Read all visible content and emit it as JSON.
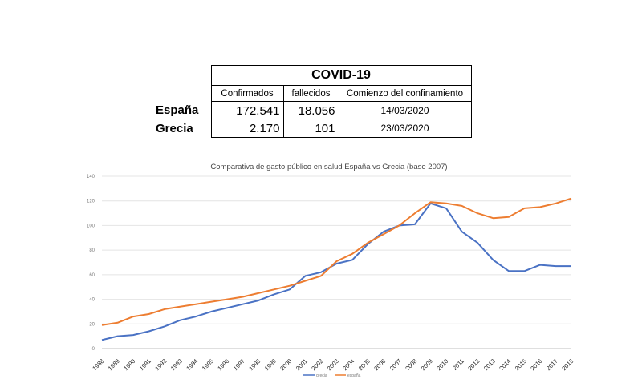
{
  "covid_table": {
    "title": "COVID-19",
    "headers": [
      "Confirmados",
      "fallecidos",
      "Comienzo del confinamiento"
    ],
    "rows": [
      {
        "country": "España",
        "confirmados": "172.541",
        "fallecidos": "18.056",
        "confinamiento": "14/03/2020"
      },
      {
        "country": "Grecia",
        "confirmados": "2.170",
        "fallecidos": "101",
        "confinamiento": "23/03/2020"
      }
    ]
  },
  "chart_data": {
    "type": "line",
    "title": "Comparativa de gasto público en salud España vs Grecia (base 2007)",
    "xlabel": "",
    "ylabel": "",
    "ylim": [
      0,
      140
    ],
    "yticks": [
      "0",
      "20",
      "40",
      "60",
      "80",
      "100",
      "120",
      "140"
    ],
    "grid": true,
    "legend_position": "bottom",
    "x": [
      "1988",
      "1989",
      "1990",
      "1991",
      "1992",
      "1993",
      "1994",
      "1995",
      "1996",
      "1997",
      "1998",
      "1999",
      "2000",
      "2001",
      "2002",
      "2003",
      "2004",
      "2005",
      "2006",
      "2007",
      "2008",
      "2009",
      "2010",
      "2011",
      "2012",
      "2013",
      "2014",
      "2015",
      "2016",
      "2017",
      "2018"
    ],
    "series": [
      {
        "name": "grecia",
        "color": "#4a72c4",
        "values": [
          7,
          10,
          11,
          14,
          18,
          23,
          26,
          30,
          33,
          36,
          39,
          44,
          48,
          59,
          62,
          69,
          72,
          85,
          95,
          100,
          101,
          118,
          114,
          95,
          86,
          72,
          63,
          63,
          68,
          67,
          67
        ]
      },
      {
        "name": "españa",
        "color": "#ed7d31",
        "values": [
          19,
          21,
          26,
          28,
          32,
          34,
          36,
          38,
          40,
          42,
          45,
          48,
          51,
          55,
          59,
          71,
          77,
          86,
          93,
          100,
          110,
          119,
          118,
          116,
          110,
          106,
          107,
          114,
          115,
          118,
          122
        ]
      }
    ]
  }
}
